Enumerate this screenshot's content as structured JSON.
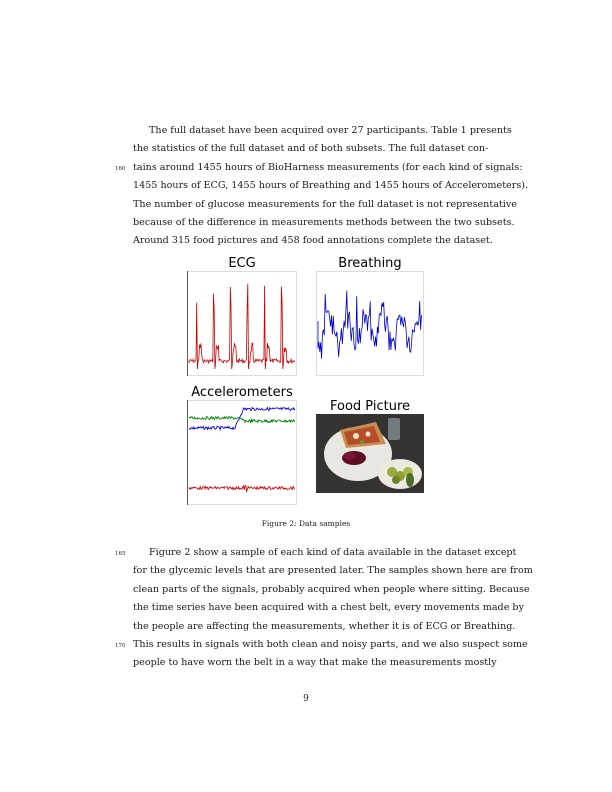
{
  "paragraph1": {
    "lines": [
      "The full dataset have been acquired over 27 participants.  Table 1 presents",
      "the statistics of the full dataset and of both subsets.  The full dataset con-",
      "tains around 1455 hours of BioHarness measurements (for each kind of signals:",
      "1455 hours of ECG, 1455 hours of Breathing and 1455 hours of Accelerometers).",
      "The number of glucose measurements for the full dataset is not representative",
      "because of the difference in measurements methods between the two subsets.",
      "Around 315 food pictures and 458 food annotations complete the dataset."
    ],
    "line_number": "160"
  },
  "figure": {
    "panels": {
      "ecg": "ECG",
      "breathing": "Breathing",
      "accelerometers": "Accelerometers",
      "food": "Food Picture"
    },
    "caption": "Figure 2:   Data samples",
    "colors": {
      "ecg": "#cc0000",
      "breathing": "#0000cc",
      "acc_x": "#0000ff",
      "acc_y": "#008000",
      "acc_z": "#dd0000"
    }
  },
  "paragraph2": {
    "lines": [
      "Figure 2 show a sample of each kind of data available in the dataset except",
      "for the glycemic levels that are presented later.  The samples shown here are from",
      "clean parts of the signals, probably acquired when people where sitting.  Because",
      "the time series have been acquired with a chest belt, every movements made by",
      "the people are affecting the measurements, whether it is of ECG or Breathing.",
      "This results in signals with both clean and noisy parts, and we also suspect some",
      "people to have worn the belt in a way that make the measurements mostly"
    ],
    "line_numbers": [
      "165",
      "170"
    ]
  },
  "page_number": "9"
}
